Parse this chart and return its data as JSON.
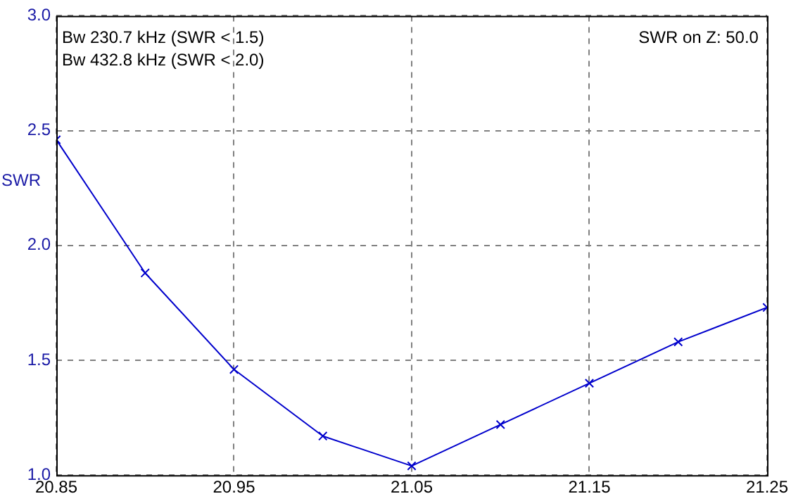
{
  "chart_data": {
    "type": "line",
    "ylabel": "SWR",
    "x": [
      20.85,
      20.9,
      20.95,
      21.0,
      21.05,
      21.1,
      21.15,
      21.2,
      21.25
    ],
    "series": [
      {
        "color": "#0000cc",
        "values": [
          2.46,
          1.88,
          1.46,
          1.17,
          1.04,
          1.22,
          1.4,
          1.58,
          1.73
        ]
      }
    ],
    "xlim": [
      20.85,
      21.25
    ],
    "xticks": [
      20.85,
      20.95,
      21.05,
      21.15,
      21.25
    ],
    "ylim": [
      1.0,
      3.0
    ],
    "yticks": [
      {
        "value": 1.0,
        "label": "1.0"
      },
      {
        "value": 1.5,
        "label": "1.5"
      },
      {
        "value": 2.0,
        "label": "2.0"
      },
      {
        "value": 2.5,
        "label": "2.5"
      },
      {
        "value": 3.0,
        "label": "3.0"
      }
    ],
    "annotations": [
      "Bw 230.7 kHz (SWR < 1.5)",
      "Bw 432.8 kHz (SWR < 2.0)",
      "SWR on Z: 50.0"
    ],
    "grid": true,
    "marker": "cross",
    "line_style": "solid",
    "legend": false
  }
}
